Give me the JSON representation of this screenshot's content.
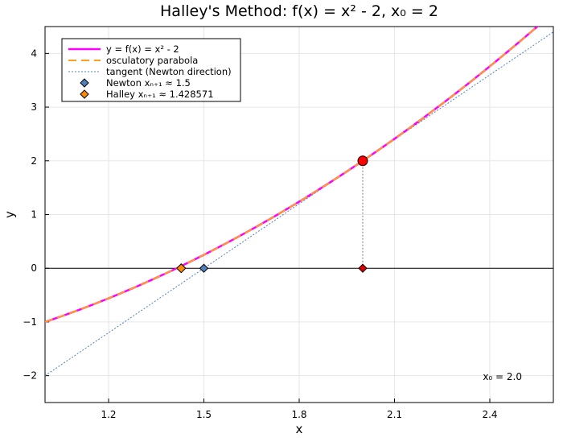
{
  "chart_data": {
    "type": "line",
    "title": "Halley's Method: f(x) = x² - 2,  x₀ = 2",
    "xlabel": "x",
    "ylabel": "y",
    "xlim": [
      1.0,
      2.6
    ],
    "ylim": [
      -2.5,
      4.5
    ],
    "xticks": [
      1.2,
      1.5,
      1.8,
      2.1,
      2.4
    ],
    "xtick_labels": [
      "1.2",
      "1.5",
      "1.8",
      "2.1",
      "2.4"
    ],
    "yticks": [
      -2,
      -1,
      0,
      1,
      2,
      3,
      4
    ],
    "ytick_labels": [
      "−2",
      "−1",
      "0",
      "1",
      "2",
      "3",
      "4"
    ],
    "grid": true,
    "legend_position": "top-left",
    "series": [
      {
        "name": "y = f(x) = x² - 2",
        "kind": "function",
        "expr": "x^2 - 2",
        "color": "#ff00ff",
        "style": "solid"
      },
      {
        "name": "osculatory parabola",
        "kind": "function",
        "expr": "2 + 4(x-2) + (x-2)^2",
        "color": "#ff9f1c",
        "style": "dashed"
      },
      {
        "name": "tangent (Newton direction)",
        "kind": "function",
        "expr": "2 + 4(x-2)",
        "color": "#4f81bd",
        "style": "dotted"
      },
      {
        "name": "Newton xₙ₊₁ ≈ 1.5",
        "kind": "point",
        "x": 1.5,
        "y": 0,
        "color": "#4f81bd",
        "marker": "diamond"
      },
      {
        "name": "Halley xₙ₊₁ ≈ 1.428571",
        "kind": "point",
        "x": 1.428571,
        "y": 0,
        "color": "#ff8c00",
        "marker": "diamond"
      }
    ],
    "current_point": {
      "x": 2.0,
      "y": 2.0,
      "color": "#ff0000"
    },
    "root_marker": {
      "x": 2.0,
      "y": 0,
      "color": "#dd0000"
    },
    "annotation": "x₀ = 2.0"
  }
}
